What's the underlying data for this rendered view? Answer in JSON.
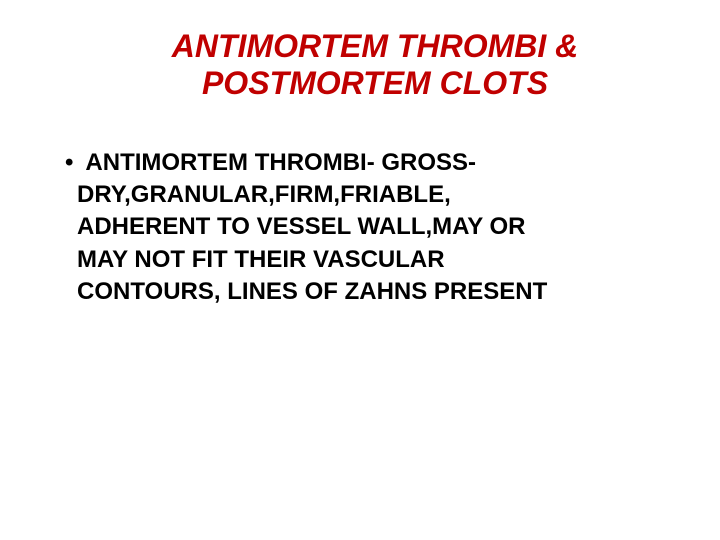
{
  "title": {
    "line1": "ANTIMORTEM THROMBI &",
    "line2": "POSTMORTEM CLOTS",
    "color": "#c00000",
    "fontsize": 32
  },
  "body": {
    "color": "#000000",
    "fontsize": 24,
    "bullet_lead": "ANTIMORTEM THROMBI-   GROSS-",
    "cont1": "DRY,GRANULAR,FIRM,FRIABLE,",
    "cont2": "ADHERENT TO VESSEL WALL,MAY OR",
    "cont3": " MAY    NOT FIT THEIR VASCULAR",
    "cont4": " CONTOURS,  LINES OF ZAHNS PRESENT"
  },
  "background_color": "#ffffff"
}
